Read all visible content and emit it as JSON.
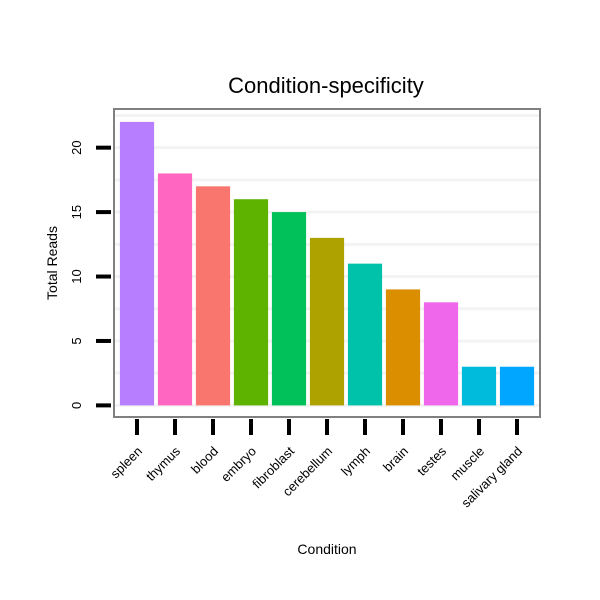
{
  "chart_data": {
    "type": "bar",
    "title": "Condition-specificity",
    "xlabel": "Condition",
    "ylabel": "Total Reads",
    "categories": [
      "spleen",
      "thymus",
      "blood",
      "embryo",
      "fibroblast",
      "cerebellum",
      "lymph",
      "brain",
      "testes",
      "muscle",
      "salivary gland"
    ],
    "values": [
      22,
      18,
      17,
      16,
      15,
      13,
      11,
      9,
      8,
      3,
      3
    ],
    "colors": [
      "#b77eff",
      "#ff66c1",
      "#f8766d",
      "#5eb300",
      "#00c15a",
      "#aea200",
      "#00c1aa",
      "#db8e00",
      "#ef67eb",
      "#00bbdb",
      "#00a6ff"
    ],
    "ylim": [
      -0.9,
      23
    ],
    "yticks": [
      0,
      5,
      10,
      15,
      20
    ],
    "grid": true,
    "legend": "none"
  }
}
